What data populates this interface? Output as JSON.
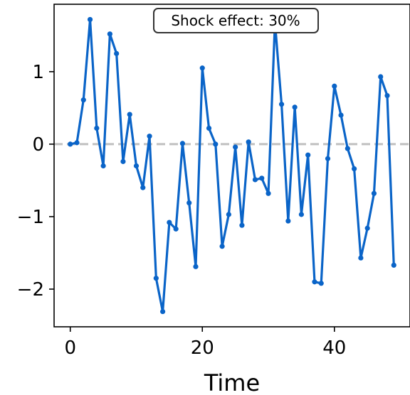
{
  "chart_data": {
    "type": "line",
    "title": "",
    "xlabel": "Time",
    "ylabel": "",
    "xlim": [
      -2.45,
      51.45
    ],
    "ylim": [
      -2.52,
      1.93
    ],
    "x_ticks": [
      0,
      20,
      40
    ],
    "x_tick_labels": [
      "0",
      "20",
      "40"
    ],
    "y_ticks": [
      -2,
      -1,
      0,
      1
    ],
    "y_tick_labels": [
      "−2",
      "−1",
      "0",
      "1"
    ],
    "grid": false,
    "reference_line": {
      "y": 0,
      "style": "dashed",
      "color": "#c0c0c0"
    },
    "annotation": {
      "text": "Shock effect: 30%"
    },
    "series": [
      {
        "color": "#0a64c8",
        "marker": "circle",
        "x": [
          0,
          1,
          2,
          3,
          4,
          5,
          6,
          7,
          8,
          9,
          10,
          11,
          12,
          13,
          14,
          15,
          16,
          17,
          18,
          19,
          20,
          21,
          22,
          23,
          24,
          25,
          26,
          27,
          28,
          29,
          30,
          31,
          32,
          33,
          34,
          35,
          36,
          37,
          38,
          39,
          40,
          41,
          42,
          43,
          44,
          45,
          46,
          47,
          48,
          49
        ],
        "y": [
          0.0,
          0.02,
          0.61,
          1.72,
          0.22,
          -0.3,
          1.52,
          1.25,
          -0.24,
          0.41,
          -0.3,
          -0.6,
          0.11,
          -1.85,
          -2.31,
          -1.08,
          -1.17,
          0.01,
          -0.81,
          -1.69,
          1.05,
          0.22,
          0.0,
          -1.41,
          -0.97,
          -0.04,
          -1.12,
          0.03,
          -0.49,
          -0.47,
          -0.68,
          1.68,
          0.55,
          -1.06,
          0.51,
          -0.97,
          -0.15,
          -1.9,
          -1.92,
          -0.2,
          0.8,
          0.4,
          -0.06,
          -0.34,
          -1.57,
          -1.16,
          -0.68,
          0.93,
          0.67,
          -1.67
        ]
      }
    ]
  }
}
